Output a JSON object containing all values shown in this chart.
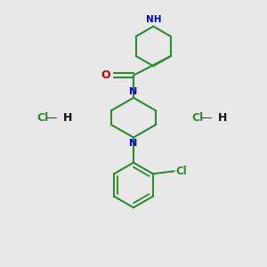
{
  "background_color": "#e8e8e8",
  "bond_color": "#2d8c2d",
  "nitrogen_color": "#0000cc",
  "oxygen_color": "#cc0000",
  "chlorine_color": "#2d8c2d",
  "line_width": 1.5,
  "fig_size": [
    3.0,
    3.0
  ],
  "dpi": 100,
  "xlim": [
    0,
    10
  ],
  "ylim": [
    0,
    10
  ]
}
